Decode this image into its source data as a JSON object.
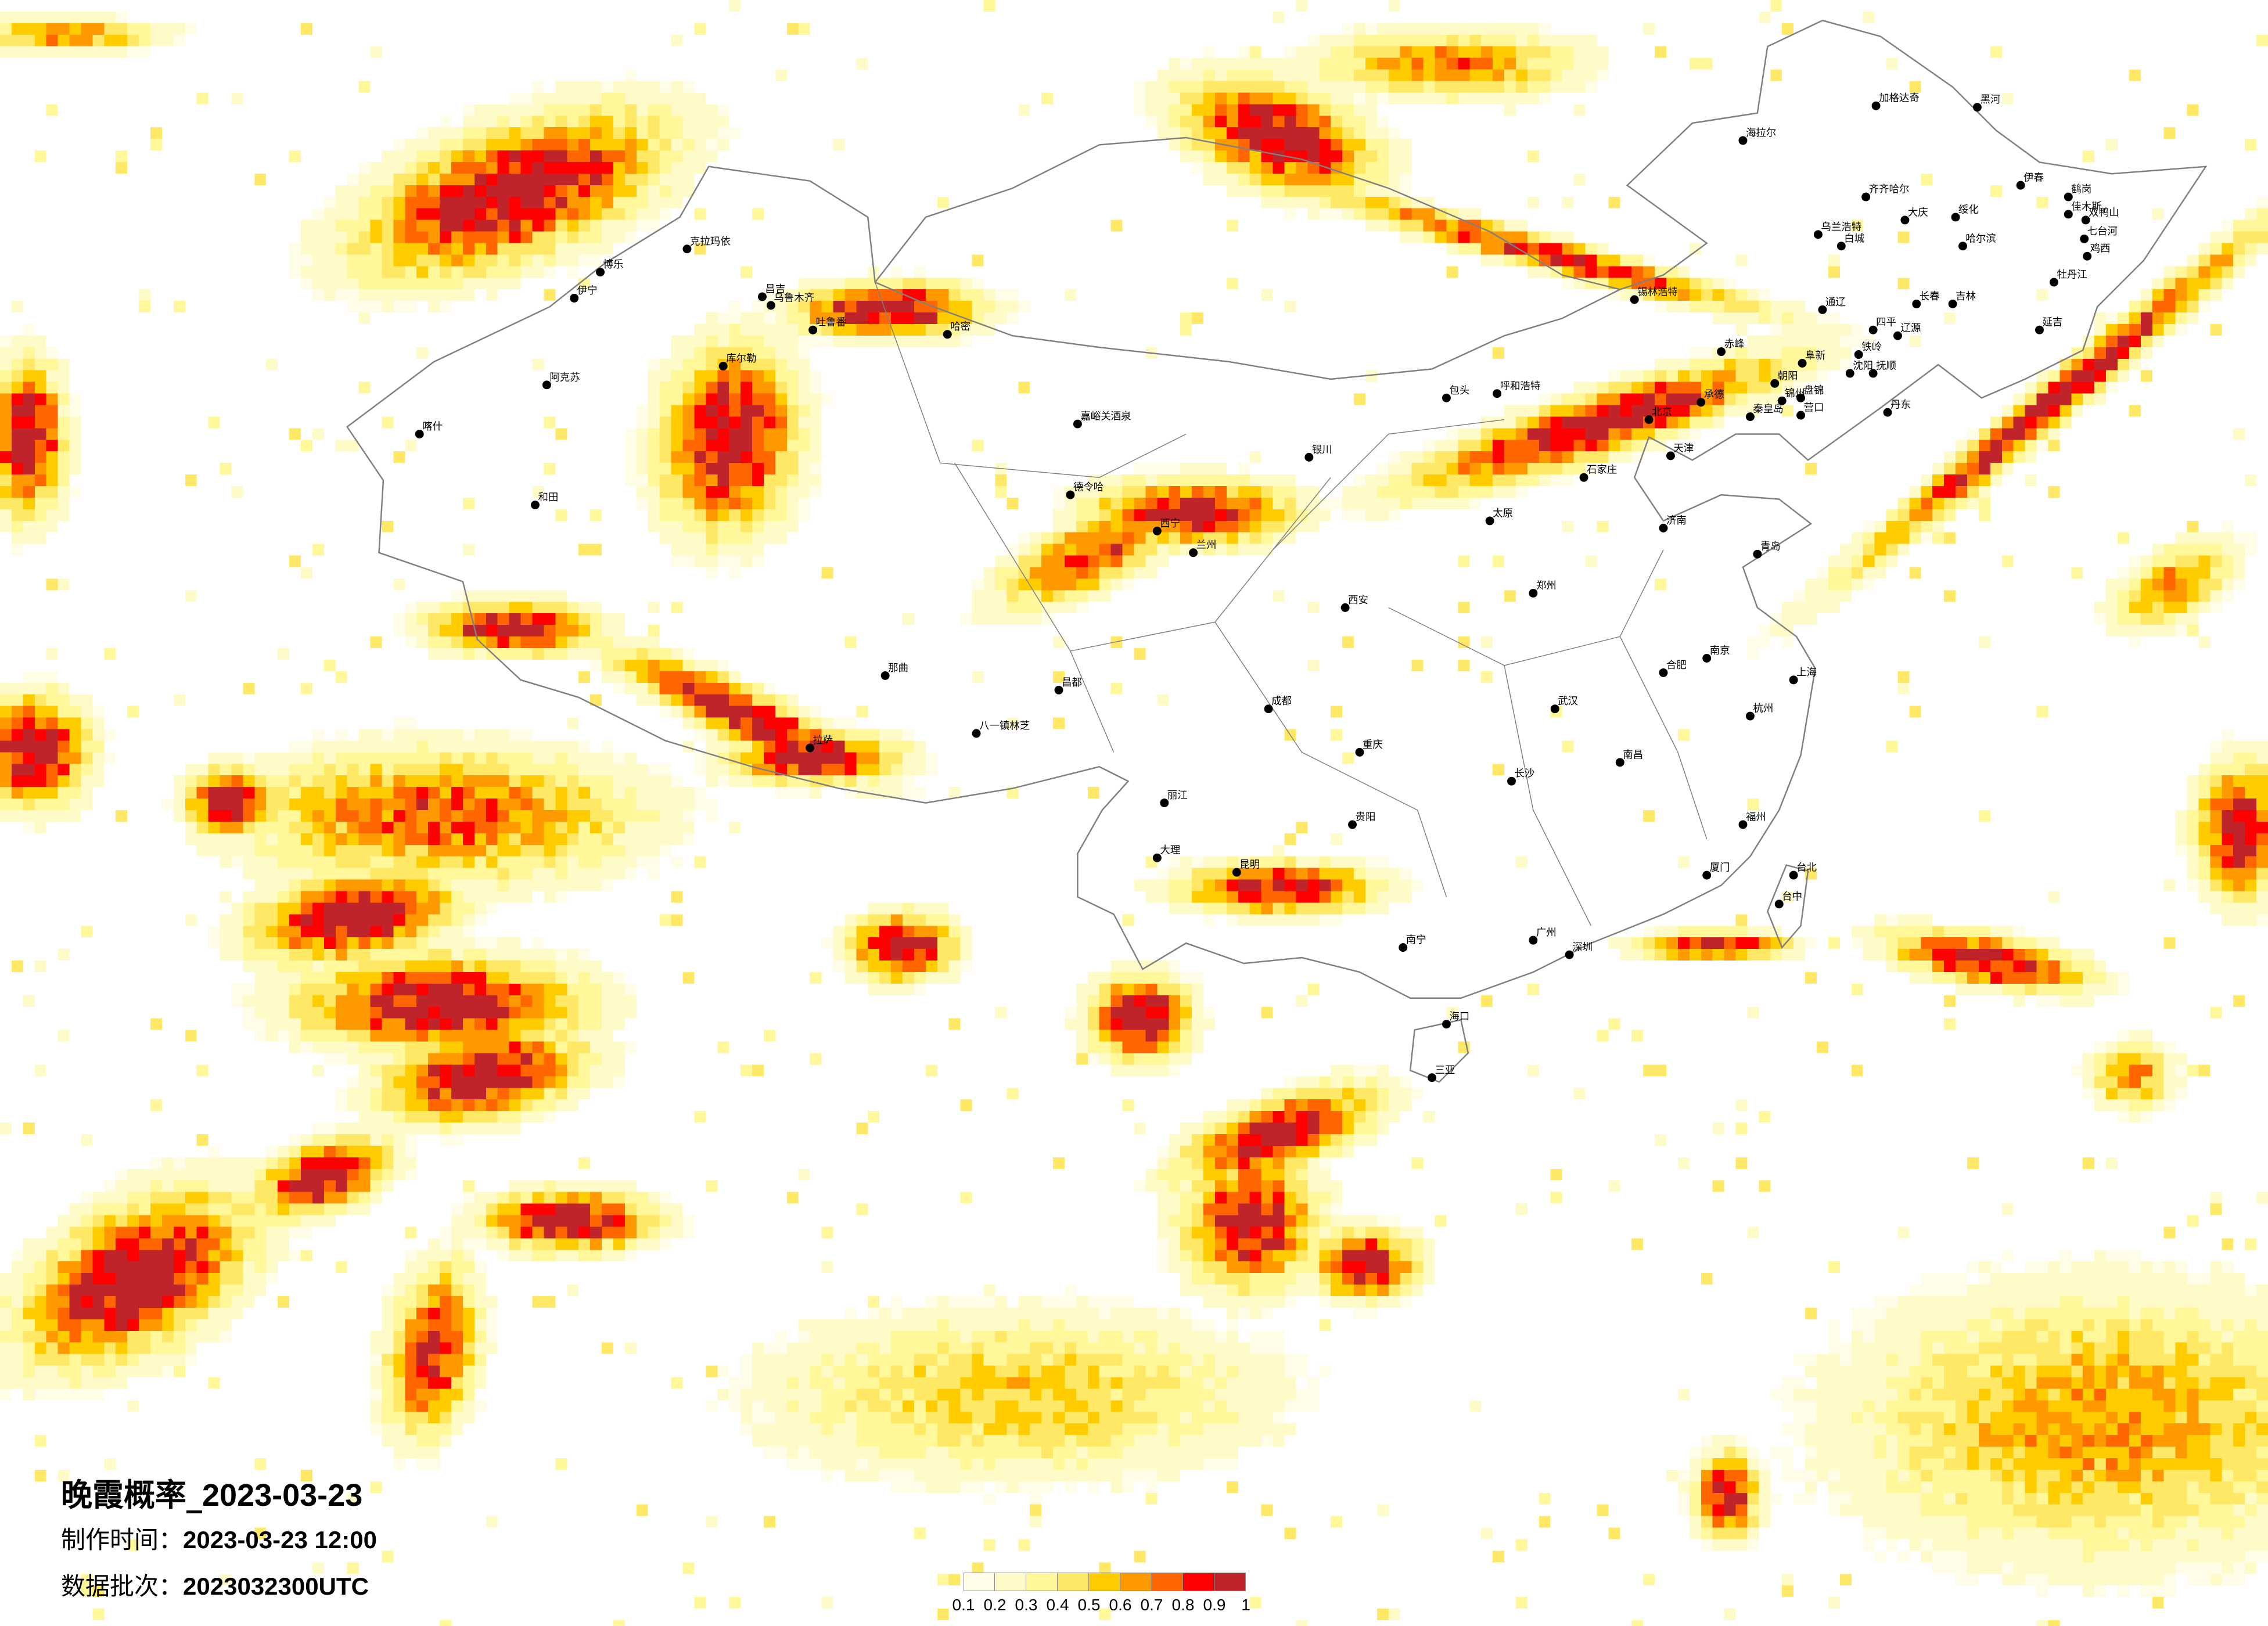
{
  "title": {
    "label": "晚霞概率_",
    "date": "2023-03-23"
  },
  "made_time": {
    "label": "制作时间：",
    "value": "2023-03-23 12:00"
  },
  "data_batch": {
    "label": "数据批次：",
    "value": "2023032300UTC"
  },
  "legend": {
    "labels": [
      "0.1",
      "0.2",
      "0.3",
      "0.4",
      "0.5",
      "0.6",
      "0.7",
      "0.8",
      "0.9",
      "1"
    ],
    "colors": [
      "#FFFDE8",
      "#FFFBC8",
      "#FFF799",
      "#FFE866",
      "#FFCC00",
      "#FF9900",
      "#FF6600",
      "#FF0000",
      "#C0242B"
    ]
  },
  "border_color": "#808080",
  "cities": [
    "海拉尔",
    "加格达奇",
    "黑河",
    "齐齐哈尔",
    "伊春",
    "鹤岗",
    "佳木斯",
    "双鸭山",
    "大庆",
    "绥化",
    "哈尔滨",
    "七台河",
    "鸡西",
    "牡丹江",
    "乌兰浩特",
    "白城",
    "长春",
    "吉林",
    "通辽",
    "四平",
    "辽源",
    "延吉",
    "赤峰",
    "阜新",
    "朝阳",
    "承德",
    "沈阳",
    "抚顺",
    "铁岭",
    "锦州",
    "盘锦",
    "营口",
    "丹东",
    "秦皇岛",
    "锡林浩特",
    "呼和浩特",
    "包头",
    "克拉玛依",
    "博乐",
    "伊宁",
    "昌吉",
    "乌鲁木齐",
    "吐鲁番",
    "哈密",
    "库尔勒",
    "阿克苏",
    "喀什",
    "和田",
    "嘉峪关酒泉",
    "德令哈",
    "那曲",
    "拉萨",
    "八一镇林芝",
    "昌都",
    "银川",
    "西宁",
    "兰州",
    "西安",
    "北京",
    "天津",
    "石家庄",
    "太原",
    "济南",
    "青岛",
    "郑州",
    "武汉",
    "合肥",
    "南京",
    "上海",
    "杭州",
    "南昌",
    "长沙",
    "福州",
    "厦门",
    "广州",
    "深圳",
    "南宁",
    "海口",
    "三亚",
    "台北",
    "台中",
    "贵阳",
    "昆明",
    "成都",
    "重庆",
    "大理",
    "丽江"
  ]
}
